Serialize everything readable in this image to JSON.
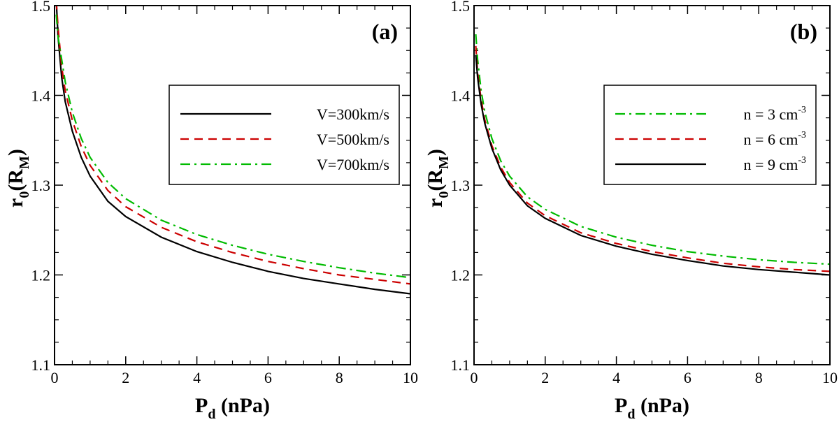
{
  "chart_data": [
    {
      "type": "line",
      "panel_label": "(a)",
      "xlabel": "P",
      "xlabel_sub": "d",
      "xlabel_unit": "(nPa)",
      "ylabel": "r",
      "ylabel_sub": "0",
      "ylabel_unit_open": "(R",
      "ylabel_unit_sub": "M",
      "ylabel_unit_close": ")",
      "xlim": [
        0,
        10
      ],
      "ylim": [
        1.1,
        1.5
      ],
      "xticks": [
        "0",
        "2",
        "4",
        "6",
        "8",
        "10"
      ],
      "yticks": [
        "1.1",
        "1.2",
        "1.3",
        "1.4",
        "1.5"
      ],
      "legend_position": "upper-right",
      "series": [
        {
          "name": "V=300km/s",
          "color": "#000000",
          "style": "solid",
          "x": [
            0.05,
            0.1,
            0.2,
            0.3,
            0.5,
            0.75,
            1,
            1.5,
            2,
            3,
            4,
            5,
            6,
            7,
            8,
            9,
            10
          ],
          "y": [
            1.505,
            1.465,
            1.42,
            1.393,
            1.36,
            1.331,
            1.31,
            1.282,
            1.265,
            1.242,
            1.226,
            1.214,
            1.204,
            1.196,
            1.19,
            1.184,
            1.179
          ]
        },
        {
          "name": "V=500km/s",
          "color": "#cc0000",
          "style": "dashed",
          "x": [
            0.05,
            0.1,
            0.2,
            0.3,
            0.5,
            0.75,
            1,
            1.5,
            2,
            3,
            4,
            5,
            6,
            7,
            8,
            9,
            10
          ],
          "y": [
            1.505,
            1.475,
            1.432,
            1.405,
            1.372,
            1.343,
            1.322,
            1.294,
            1.276,
            1.253,
            1.237,
            1.225,
            1.215,
            1.207,
            1.2,
            1.195,
            1.19
          ]
        },
        {
          "name": "V=700km/s",
          "color": "#00bb00",
          "style": "dashdot",
          "x": [
            0.05,
            0.1,
            0.2,
            0.3,
            0.5,
            0.75,
            1,
            1.5,
            2,
            3,
            4,
            5,
            6,
            7,
            8,
            9,
            10
          ],
          "y": [
            1.49,
            1.465,
            1.44,
            1.415,
            1.381,
            1.352,
            1.331,
            1.303,
            1.285,
            1.261,
            1.245,
            1.233,
            1.223,
            1.215,
            1.208,
            1.202,
            1.197
          ]
        }
      ]
    },
    {
      "type": "line",
      "panel_label": "(b)",
      "xlabel": "P",
      "xlabel_sub": "d",
      "xlabel_unit": "(nPa)",
      "ylabel": "r",
      "ylabel_sub": "0",
      "ylabel_unit_open": "(R",
      "ylabel_unit_sub": "M",
      "ylabel_unit_close": ")",
      "xlim": [
        0,
        10
      ],
      "ylim": [
        1.1,
        1.5
      ],
      "xticks": [
        "0",
        "2",
        "4",
        "6",
        "8",
        "10"
      ],
      "yticks": [
        "1.1",
        "1.2",
        "1.3",
        "1.4",
        "1.5"
      ],
      "legend_position": "upper-right",
      "series": [
        {
          "name": "n = 3 cm",
          "unit_sup": "-3",
          "color": "#00bb00",
          "style": "dashdot",
          "x": [
            0.05,
            0.1,
            0.2,
            0.3,
            0.5,
            0.75,
            1,
            1.5,
            2,
            3,
            4,
            5,
            6,
            7,
            8,
            9,
            10
          ],
          "y": [
            1.468,
            1.44,
            1.405,
            1.382,
            1.352,
            1.327,
            1.31,
            1.287,
            1.273,
            1.254,
            1.242,
            1.233,
            1.226,
            1.221,
            1.217,
            1.214,
            1.212
          ]
        },
        {
          "name": "n = 6 cm",
          "unit_sup": "-3",
          "color": "#cc0000",
          "style": "dashed",
          "x": [
            0.05,
            0.1,
            0.2,
            0.3,
            0.5,
            0.75,
            1,
            1.5,
            2,
            3,
            4,
            5,
            6,
            7,
            8,
            9,
            10
          ],
          "y": [
            1.455,
            1.425,
            1.395,
            1.373,
            1.344,
            1.32,
            1.303,
            1.28,
            1.266,
            1.247,
            1.235,
            1.226,
            1.219,
            1.213,
            1.209,
            1.206,
            1.204
          ]
        },
        {
          "name": "n = 9 cm",
          "unit_sup": "-3",
          "color": "#000000",
          "style": "solid",
          "x": [
            0.05,
            0.1,
            0.2,
            0.3,
            0.5,
            0.75,
            1,
            1.5,
            2,
            3,
            4,
            5,
            6,
            7,
            8,
            9,
            10
          ],
          "y": [
            1.445,
            1.42,
            1.39,
            1.369,
            1.341,
            1.317,
            1.3,
            1.277,
            1.263,
            1.244,
            1.232,
            1.223,
            1.216,
            1.21,
            1.206,
            1.203,
            1.2
          ]
        }
      ]
    }
  ]
}
